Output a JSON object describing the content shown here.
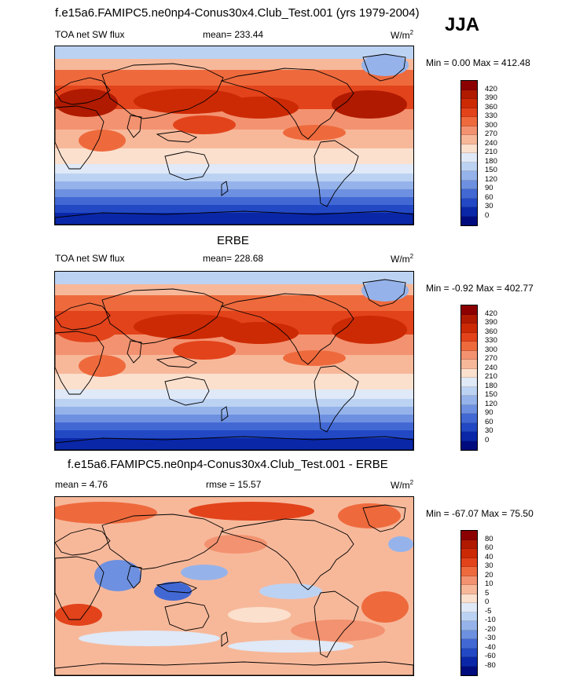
{
  "title": "f.e15a6.FAMIPC5.ne0np4-Conus30x4.Club_Test.001 (yrs 1979-2004)",
  "season": "JJA",
  "panels": [
    {
      "heading": "",
      "left_label": "TOA net SW flux",
      "center_label": "mean= 233.44",
      "units": "W/m",
      "units_sup": "2",
      "minmax": "Min =   0.00 Max = 412.48",
      "levels": [
        "420",
        "390",
        "360",
        "330",
        "300",
        "270",
        "240",
        "210",
        "180",
        "150",
        "120",
        "90",
        "60",
        "30",
        "0"
      ],
      "colors": [
        "#8c0000",
        "#b01a00",
        "#cc2a05",
        "#e2431b",
        "#ee6a3d",
        "#f39270",
        "#f7b89a",
        "#fbe0ce",
        "#dfe9f7",
        "#bcd2f2",
        "#95b3ea",
        "#6e90e0",
        "#4268d4",
        "#2248c4",
        "#0a27a8",
        "#000c7e"
      ]
    },
    {
      "heading": "ERBE",
      "left_label": "TOA net SW flux",
      "center_label": "mean= 228.68",
      "units": "W/m",
      "units_sup": "2",
      "minmax": "Min =  -0.92 Max = 402.77",
      "levels": [
        "420",
        "390",
        "360",
        "330",
        "300",
        "270",
        "240",
        "210",
        "180",
        "150",
        "120",
        "90",
        "60",
        "30",
        "0"
      ],
      "colors": [
        "#8c0000",
        "#b01a00",
        "#cc2a05",
        "#e2431b",
        "#ee6a3d",
        "#f39270",
        "#f7b89a",
        "#fbe0ce",
        "#dfe9f7",
        "#bcd2f2",
        "#95b3ea",
        "#6e90e0",
        "#4268d4",
        "#2248c4",
        "#0a27a8",
        "#000c7e"
      ]
    },
    {
      "heading": "f.e15a6.FAMIPC5.ne0np4-Conus30x4.Club_Test.001 - ERBE",
      "left_label": "mean =   4.76",
      "center_label": "rmse =   15.57",
      "units": "W/m",
      "units_sup": "2",
      "minmax": "Min = -67.07 Max =  75.50",
      "levels": [
        "80",
        "60",
        "40",
        "30",
        "20",
        "10",
        "5",
        "0",
        "-5",
        "-10",
        "-20",
        "-30",
        "-40",
        "-60",
        "-80"
      ],
      "colors": [
        "#8c0000",
        "#b01a00",
        "#cc2a05",
        "#e2431b",
        "#ee6a3d",
        "#f39270",
        "#f7b89a",
        "#fbe0ce",
        "#dfe9f7",
        "#bcd2f2",
        "#95b3ea",
        "#6e90e0",
        "#4268d4",
        "#2248c4",
        "#0a27a8",
        "#000c7e"
      ]
    }
  ]
}
